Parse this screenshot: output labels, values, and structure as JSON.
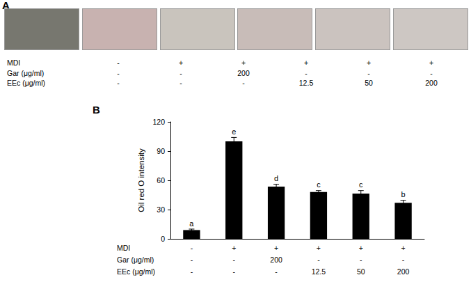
{
  "panel_a": {
    "label": "A",
    "conditions": [
      {
        "label": "MDI",
        "values": [
          "-",
          "+",
          "+",
          "+",
          "+",
          "+"
        ]
      },
      {
        "label": "Gar (μg/ml)",
        "values": [
          "-",
          "-",
          "200",
          "-",
          "-",
          "-"
        ]
      },
      {
        "label": "EEc (μg/ml)",
        "values": [
          "-",
          "-",
          "-",
          "12.5",
          "50",
          "200"
        ]
      }
    ]
  },
  "chart_data": {
    "type": "bar",
    "title": "B",
    "y_label": "Oil red O intensity",
    "categories": [
      null,
      null,
      null,
      null,
      null,
      null
    ],
    "values": [
      9,
      100,
      53.5,
      48,
      46.5,
      37
    ],
    "errors": [
      1,
      4,
      2.5,
      1.5,
      3,
      2.5
    ],
    "annotations": [
      "a",
      "e",
      "d",
      "c",
      "c",
      "b"
    ],
    "color": "#000000",
    "ylim": [
      0,
      120
    ],
    "yticks": [
      0,
      30,
      60,
      90,
      120
    ],
    "grid": false,
    "conditions": [
      {
        "label": "MDI",
        "values": [
          "-",
          "+",
          "+",
          "+",
          "+",
          "+"
        ]
      },
      {
        "label": "Gar (μg/ml)",
        "values": [
          "-",
          "-",
          "200",
          "-",
          "-",
          "-"
        ]
      },
      {
        "label": "EEc (μg/ml)",
        "values": [
          "-",
          "-",
          "-",
          "12.5",
          "50",
          "200"
        ]
      }
    ]
  }
}
